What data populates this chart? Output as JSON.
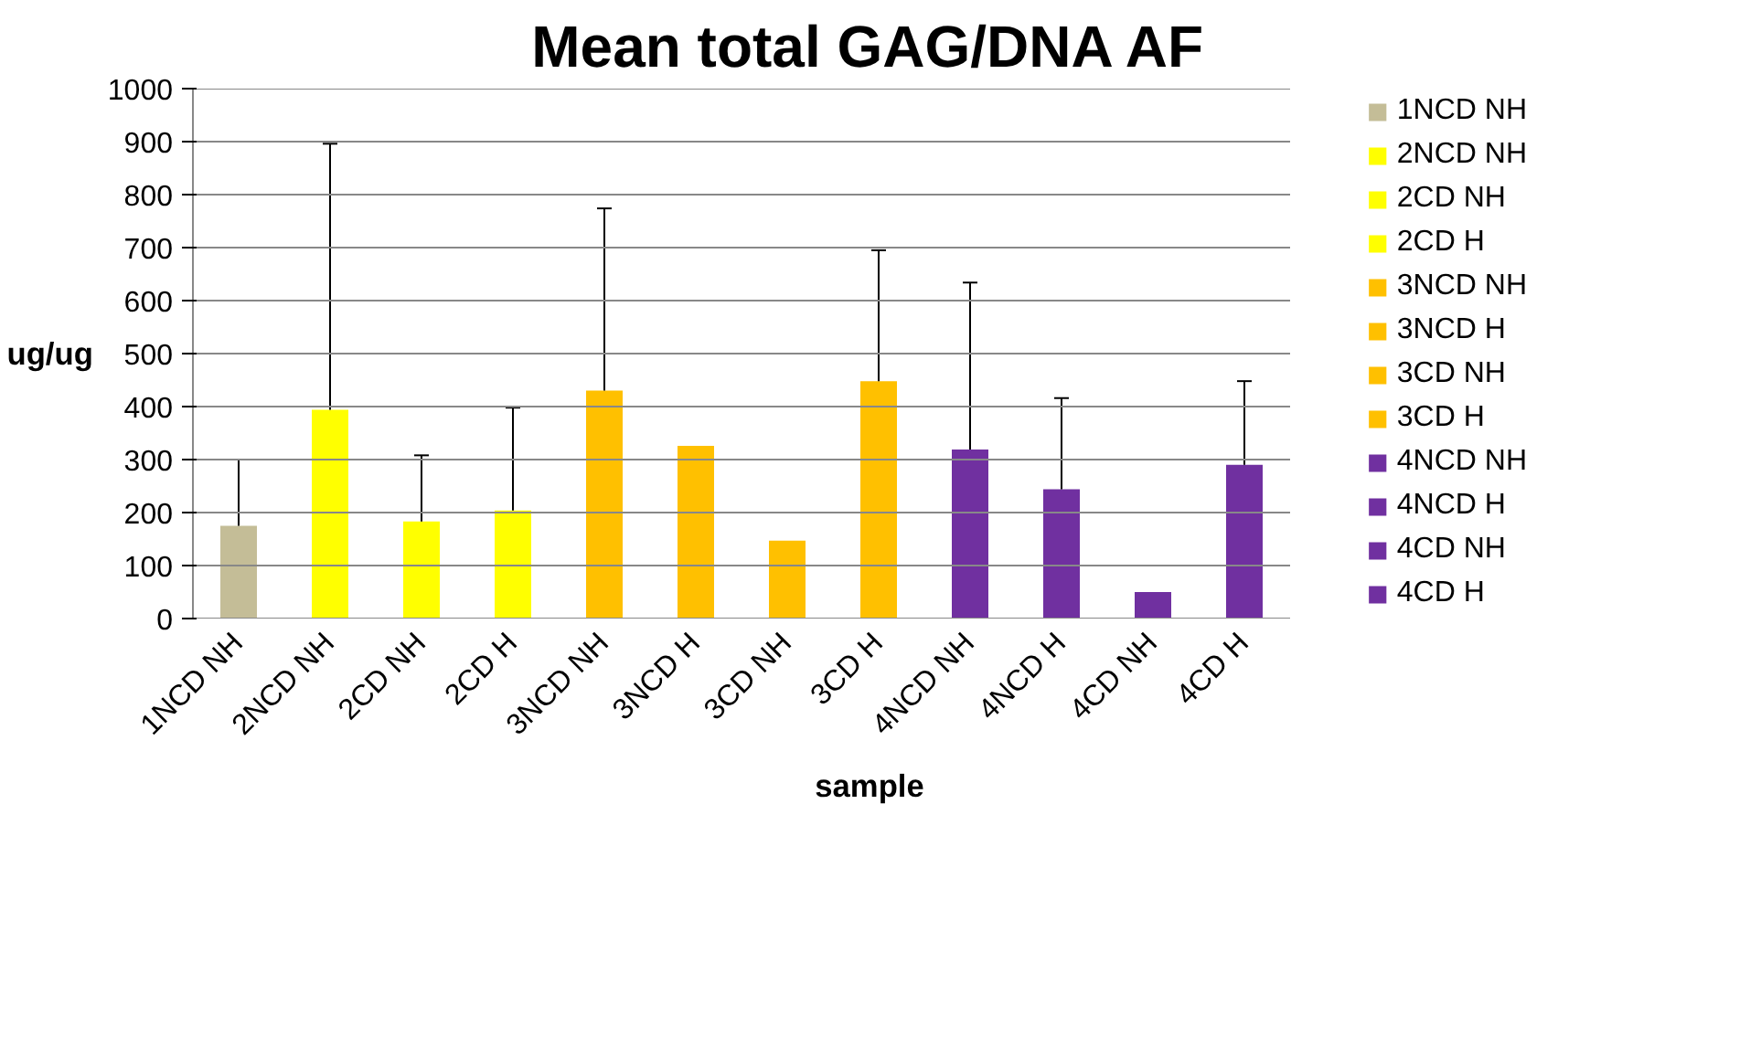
{
  "chart_data": {
    "type": "bar",
    "title": "Mean total GAG/DNA AF",
    "xlabel": "sample",
    "ylabel": "ug/ug",
    "categories": [
      "1NCD NH",
      "2NCD NH",
      "2CD NH",
      "2CD H",
      "3NCD NH",
      "3NCD H",
      "3CD NH",
      "3CD H",
      "4NCD NH",
      "4NCD H",
      "4CD NH",
      "4CD H"
    ],
    "series": [
      {
        "name": "1NCD NH",
        "color": "#c4bd97",
        "values": [
          175,
          null,
          null,
          null,
          null,
          null,
          null,
          null,
          null,
          null,
          null,
          null
        ],
        "errors": [
          [
            175,
            300
          ],
          null,
          null,
          null,
          null,
          null,
          null,
          null,
          null,
          null,
          null,
          null
        ]
      },
      {
        "name": "2NCD NH",
        "color": "#ffff00",
        "values": [
          null,
          394,
          null,
          null,
          null,
          null,
          null,
          null,
          null,
          null,
          null,
          null
        ],
        "errors": [
          null,
          [
            394,
            896
          ],
          null,
          null,
          null,
          null,
          null,
          null,
          null,
          null,
          null,
          null
        ]
      },
      {
        "name": "2CD NH",
        "color": "#ffff00",
        "values": [
          null,
          null,
          183,
          null,
          null,
          null,
          null,
          null,
          null,
          null,
          null,
          null
        ],
        "errors": [
          null,
          null,
          [
            183,
            308
          ],
          null,
          null,
          null,
          null,
          null,
          null,
          null,
          null,
          null
        ]
      },
      {
        "name": "2CD H",
        "color": "#ffff00",
        "values": [
          null,
          null,
          null,
          204,
          null,
          null,
          null,
          null,
          null,
          null,
          null,
          null
        ],
        "errors": [
          null,
          null,
          null,
          [
            204,
            398
          ],
          null,
          null,
          null,
          null,
          null,
          null,
          null,
          null
        ]
      },
      {
        "name": "3NCD NH",
        "color": "#ffc000",
        "values": [
          null,
          null,
          null,
          null,
          430,
          null,
          null,
          null,
          null,
          null,
          null,
          null
        ],
        "errors": [
          null,
          null,
          null,
          null,
          [
            430,
            774
          ],
          null,
          null,
          null,
          null,
          null,
          null,
          null
        ]
      },
      {
        "name": "3NCD H",
        "color": "#ffc000",
        "values": [
          null,
          null,
          null,
          null,
          null,
          326,
          null,
          null,
          null,
          null,
          null,
          null
        ]
      },
      {
        "name": "3CD NH",
        "color": "#ffc000",
        "values": [
          null,
          null,
          null,
          null,
          null,
          null,
          147,
          null,
          null,
          null,
          null,
          null
        ]
      },
      {
        "name": "3CD H",
        "color": "#ffc000",
        "values": [
          null,
          null,
          null,
          null,
          null,
          null,
          null,
          448,
          null,
          null,
          null,
          null
        ],
        "errors": [
          null,
          null,
          null,
          null,
          null,
          null,
          null,
          [
            448,
            695
          ],
          null,
          null,
          null,
          null
        ]
      },
      {
        "name": "4NCD NH",
        "color": "#7030a0",
        "values": [
          null,
          null,
          null,
          null,
          null,
          null,
          null,
          null,
          319,
          null,
          null,
          null
        ],
        "errors": [
          null,
          null,
          null,
          null,
          null,
          null,
          null,
          null,
          [
            319,
            634
          ],
          null,
          null,
          null
        ]
      },
      {
        "name": "4NCD H",
        "color": "#7030a0",
        "values": [
          null,
          null,
          null,
          null,
          null,
          null,
          null,
          null,
          null,
          244,
          null,
          null
        ],
        "errors": [
          null,
          null,
          null,
          null,
          null,
          null,
          null,
          null,
          null,
          [
            244,
            416
          ],
          null,
          null
        ]
      },
      {
        "name": "4CD NH",
        "color": "#7030a0",
        "values": [
          null,
          null,
          null,
          null,
          null,
          null,
          null,
          null,
          null,
          null,
          50,
          null
        ]
      },
      {
        "name": "4CD H",
        "color": "#7030a0",
        "values": [
          null,
          null,
          null,
          null,
          null,
          null,
          null,
          null,
          null,
          null,
          null,
          290
        ],
        "errors": [
          null,
          null,
          null,
          null,
          null,
          null,
          null,
          null,
          null,
          null,
          null,
          [
            290,
            448
          ]
        ]
      }
    ],
    "ylim": [
      0,
      1000
    ],
    "yticks": [
      0,
      100,
      200,
      300,
      400,
      500,
      600,
      700,
      800,
      900,
      1000
    ],
    "grid": "y",
    "legend": "right"
  }
}
